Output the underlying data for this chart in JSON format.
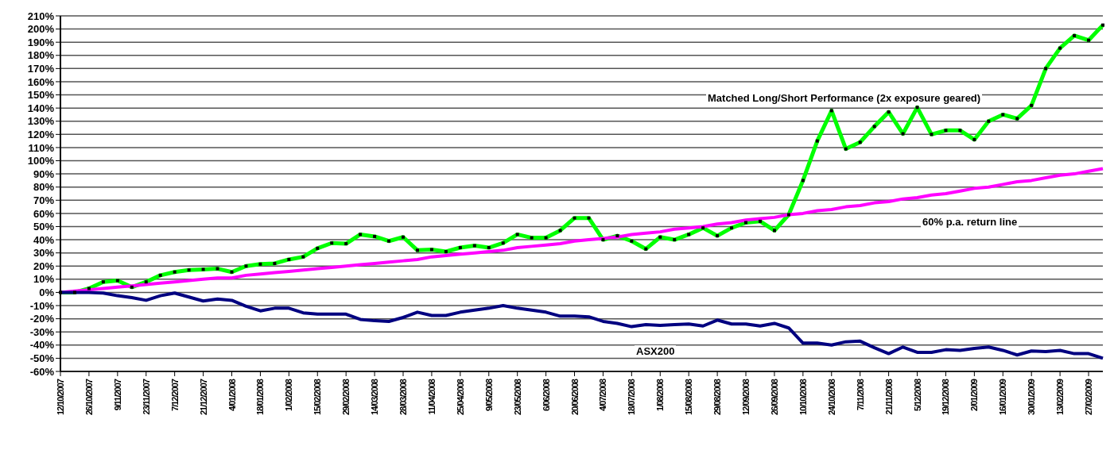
{
  "chart_data": {
    "type": "line",
    "categories": [
      "12/10/2007",
      null,
      "26/10/2007",
      null,
      "9/11/2007",
      null,
      "23/11/2007",
      null,
      "7/12/2007",
      null,
      "21/12/2007",
      null,
      "4/01/2008",
      null,
      "18/01/2008",
      null,
      "1/02/2008",
      null,
      "15/02/2008",
      null,
      "29/02/2008",
      null,
      "14/03/2008",
      null,
      "28/03/2008",
      null,
      "11/04/2008",
      null,
      "25/04/2008",
      null,
      "9/05/2008",
      null,
      "23/05/2008",
      null,
      "6/06/2008",
      null,
      "20/06/2008",
      null,
      "4/07/2008",
      null,
      "18/07/2008",
      null,
      "1/08/2008",
      null,
      "15/08/2008",
      null,
      "29/08/2008",
      null,
      "12/09/2008",
      null,
      "26/09/2008",
      null,
      "10/10/2008",
      null,
      "24/10/2008",
      null,
      "7/11/2008",
      null,
      "21/11/2008",
      null,
      "5/12/2008",
      null,
      "19/12/2008",
      null,
      "2/01/2009",
      null,
      "16/01/2009",
      null,
      "30/01/2009",
      null,
      "13/02/2009",
      null,
      "27/02/2009",
      null
    ],
    "series": [
      {
        "name": "Matched Long/Short Performance (2x exposure geared)",
        "color": "#00ff00",
        "marker": "square",
        "values": [
          0,
          0,
          3,
          8,
          9,
          4,
          8,
          13,
          15.5,
          17,
          17.5,
          18,
          15.5,
          20,
          21.5,
          22,
          25,
          27,
          33.5,
          37.5,
          37,
          44,
          42.5,
          39,
          42,
          32,
          32.5,
          31,
          34,
          35.5,
          34,
          37.5,
          44,
          41.5,
          41.5,
          47,
          56.5,
          56.5,
          40,
          43,
          39,
          33,
          42,
          40,
          44,
          49,
          43,
          49,
          53,
          54,
          47,
          59,
          85,
          115,
          138,
          109,
          114,
          126,
          137,
          120.5,
          140.5,
          120,
          123,
          123,
          116,
          130,
          135,
          132,
          142,
          170,
          185.5,
          195,
          191.5,
          203
        ]
      },
      {
        "name": "60% p.a. return line",
        "color": "#ff00ff",
        "values": [
          0,
          1,
          2,
          3,
          4,
          5,
          6,
          7,
          8,
          9,
          10,
          11,
          11,
          13,
          14,
          15,
          16,
          17,
          18,
          19,
          20,
          21,
          22,
          23,
          24,
          25,
          27,
          28,
          29,
          30,
          31,
          32,
          34,
          35,
          36,
          37,
          39,
          40,
          41,
          42,
          44,
          45,
          46,
          48,
          49,
          50,
          52,
          53,
          55,
          56,
          57,
          59,
          60,
          62,
          63,
          65,
          66,
          68,
          69,
          71,
          72,
          74,
          75,
          77,
          79,
          80,
          82,
          84,
          85,
          87,
          89,
          90,
          92,
          94
        ]
      },
      {
        "name": "ASX200",
        "color": "#000080",
        "values": [
          0,
          0,
          0,
          -0.5,
          -2.5,
          -4,
          -6,
          -2.5,
          -0.5,
          -3.5,
          -6.5,
          -5,
          -6,
          -10.5,
          -14,
          -12,
          -12,
          -15.5,
          -16.5,
          -16.5,
          -16.5,
          -20.5,
          -21.5,
          -22,
          -19,
          -15,
          -17.5,
          -17.5,
          -15,
          -13.5,
          -12,
          -10,
          -12,
          -13.5,
          -15,
          -18,
          -18,
          -18.5,
          -22,
          -23.5,
          -26,
          -24.5,
          -25,
          -24.5,
          -24,
          -25.5,
          -21,
          -24,
          -24,
          -25.5,
          -23.5,
          -27,
          -38.5,
          -38.5,
          -40,
          -37.5,
          -37,
          -42,
          -46.5,
          -41.5,
          -45.5,
          -45.5,
          -43.5,
          -44,
          -42.5,
          -41.5,
          -44,
          -47.5,
          -44.5,
          -45,
          -44,
          -46.5,
          -46.5,
          -50
        ]
      }
    ],
    "ylim": [
      -60,
      210
    ],
    "yticks": [
      {
        "value": -60,
        "label": "-60%"
      },
      {
        "value": -50,
        "label": "-50%"
      },
      {
        "value": -40,
        "label": "-40%"
      },
      {
        "value": -30,
        "label": "-30%"
      },
      {
        "value": -20,
        "label": "-20%"
      },
      {
        "value": -10,
        "label": "-10%"
      },
      {
        "value": 0,
        "label": "0%"
      },
      {
        "value": 10,
        "label": "10%"
      },
      {
        "value": 20,
        "label": "20%"
      },
      {
        "value": 30,
        "label": "30%"
      },
      {
        "value": 40,
        "label": "40%"
      },
      {
        "value": 50,
        "label": "50%"
      },
      {
        "value": 60,
        "label": "60%"
      },
      {
        "value": 70,
        "label": "70%"
      },
      {
        "value": 80,
        "label": "80%"
      },
      {
        "value": 90,
        "label": "90%"
      },
      {
        "value": 100,
        "label": "100%"
      },
      {
        "value": 110,
        "label": "110%"
      },
      {
        "value": 120,
        "label": "120%"
      },
      {
        "value": 130,
        "label": "130%"
      },
      {
        "value": 140,
        "label": "140%"
      },
      {
        "value": 150,
        "label": "150%"
      },
      {
        "value": 160,
        "label": "160%"
      },
      {
        "value": 170,
        "label": "170%"
      },
      {
        "value": 180,
        "label": "180%"
      },
      {
        "value": 190,
        "label": "190%"
      },
      {
        "value": 200,
        "label": "200%"
      },
      {
        "value": 210,
        "label": "210%"
      }
    ],
    "grid": "y",
    "legend": false,
    "marker": "none",
    "line_style": "solid"
  }
}
